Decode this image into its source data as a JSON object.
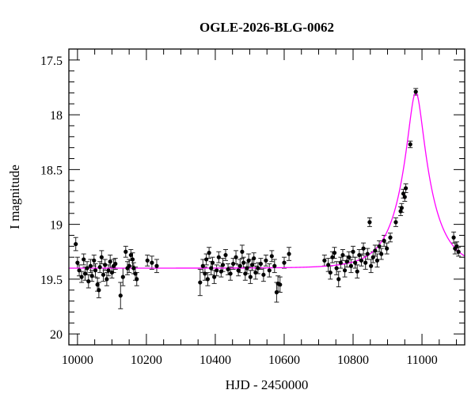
{
  "chart_data": {
    "type": "scatter",
    "title": "OGLE-2026-BLG-0062",
    "xlabel": "HJD - 2450000",
    "ylabel": "I magnitude",
    "xlim": [
      9975,
      11124
    ],
    "ylim": [
      17.4,
      20.1
    ],
    "y_inverted": true,
    "grid": false,
    "x_ticks": [
      10000,
      10200,
      10400,
      10600,
      10800,
      11000
    ],
    "x_tick_labels": [
      "10000",
      "10200",
      "10400",
      "10600",
      "10800",
      "11000"
    ],
    "y_ticks": [
      17.5,
      18,
      18.5,
      19,
      19.5,
      20
    ],
    "y_tick_labels": [
      "17.5",
      "18",
      "18.5",
      "19",
      "19.5",
      "20"
    ],
    "colors": {
      "points": "#000000",
      "model": "#ff00ff"
    },
    "points_columns": [
      "hjd",
      "mag",
      "err"
    ],
    "points": [
      [
        9995,
        19.18,
        0.06
      ],
      [
        10000,
        19.35,
        0.05
      ],
      [
        10005,
        19.42,
        0.05
      ],
      [
        10012,
        19.48,
        0.05
      ],
      [
        10018,
        19.32,
        0.05
      ],
      [
        10022,
        19.45,
        0.06
      ],
      [
        10028,
        19.4,
        0.06
      ],
      [
        10032,
        19.52,
        0.06
      ],
      [
        10038,
        19.38,
        0.06
      ],
      [
        10042,
        19.47,
        0.05
      ],
      [
        10048,
        19.33,
        0.05
      ],
      [
        10052,
        19.42,
        0.06
      ],
      [
        10058,
        19.55,
        0.06
      ],
      [
        10062,
        19.6,
        0.07
      ],
      [
        10065,
        19.39,
        0.05
      ],
      [
        10070,
        19.3,
        0.06
      ],
      [
        10075,
        19.46,
        0.06
      ],
      [
        10080,
        19.37,
        0.05
      ],
      [
        10085,
        19.5,
        0.06
      ],
      [
        10090,
        19.42,
        0.05
      ],
      [
        10095,
        19.34,
        0.06
      ],
      [
        10100,
        19.44,
        0.05
      ],
      [
        10105,
        19.38,
        0.06
      ],
      [
        10110,
        19.36,
        0.05
      ],
      [
        10125,
        19.65,
        0.12
      ],
      [
        10132,
        19.48,
        0.08
      ],
      [
        10140,
        19.25,
        0.05
      ],
      [
        10145,
        19.4,
        0.06
      ],
      [
        10150,
        19.38,
        0.06
      ],
      [
        10155,
        19.28,
        0.05
      ],
      [
        10160,
        19.32,
        0.06
      ],
      [
        10163,
        19.4,
        0.05
      ],
      [
        10168,
        19.45,
        0.06
      ],
      [
        10172,
        19.5,
        0.06
      ],
      [
        10203,
        19.33,
        0.05
      ],
      [
        10216,
        19.35,
        0.06
      ],
      [
        10230,
        19.38,
        0.06
      ],
      [
        10356,
        19.53,
        0.12
      ],
      [
        10364,
        19.38,
        0.06
      ],
      [
        10370,
        19.45,
        0.06
      ],
      [
        10374,
        19.32,
        0.05
      ],
      [
        10378,
        19.5,
        0.06
      ],
      [
        10382,
        19.26,
        0.05
      ],
      [
        10388,
        19.4,
        0.06
      ],
      [
        10392,
        19.35,
        0.05
      ],
      [
        10397,
        19.48,
        0.06
      ],
      [
        10404,
        19.42,
        0.05
      ],
      [
        10410,
        19.3,
        0.05
      ],
      [
        10417,
        19.43,
        0.05
      ],
      [
        10422,
        19.37,
        0.06
      ],
      [
        10430,
        19.28,
        0.05
      ],
      [
        10437,
        19.41,
        0.05
      ],
      [
        10444,
        19.45,
        0.06
      ],
      [
        10452,
        19.36,
        0.05
      ],
      [
        10460,
        19.3,
        0.06
      ],
      [
        10467,
        19.42,
        0.05
      ],
      [
        10472,
        19.38,
        0.06
      ],
      [
        10478,
        19.25,
        0.06
      ],
      [
        10482,
        19.35,
        0.05
      ],
      [
        10487,
        19.45,
        0.06
      ],
      [
        10492,
        19.4,
        0.05
      ],
      [
        10497,
        19.33,
        0.06
      ],
      [
        10502,
        19.48,
        0.06
      ],
      [
        10507,
        19.37,
        0.05
      ],
      [
        10512,
        19.31,
        0.05
      ],
      [
        10517,
        19.44,
        0.06
      ],
      [
        10524,
        19.4,
        0.05
      ],
      [
        10532,
        19.36,
        0.05
      ],
      [
        10540,
        19.46,
        0.06
      ],
      [
        10547,
        19.33,
        0.05
      ],
      [
        10557,
        19.42,
        0.06
      ],
      [
        10564,
        19.29,
        0.05
      ],
      [
        10572,
        19.38,
        0.06
      ],
      [
        10578,
        19.62,
        0.09
      ],
      [
        10582,
        19.54,
        0.07
      ],
      [
        10588,
        19.55,
        0.07
      ],
      [
        10600,
        19.35,
        0.05
      ],
      [
        10614,
        19.27,
        0.06
      ],
      [
        10717,
        19.33,
        0.05
      ],
      [
        10728,
        19.37,
        0.06
      ],
      [
        10734,
        19.44,
        0.06
      ],
      [
        10740,
        19.3,
        0.05
      ],
      [
        10746,
        19.26,
        0.05
      ],
      [
        10752,
        19.4,
        0.06
      ],
      [
        10758,
        19.5,
        0.07
      ],
      [
        10764,
        19.35,
        0.05
      ],
      [
        10770,
        19.28,
        0.05
      ],
      [
        10776,
        19.42,
        0.06
      ],
      [
        10782,
        19.34,
        0.05
      ],
      [
        10788,
        19.3,
        0.05
      ],
      [
        10794,
        19.38,
        0.06
      ],
      [
        10800,
        19.25,
        0.05
      ],
      [
        10806,
        19.35,
        0.05
      ],
      [
        10812,
        19.43,
        0.06
      ],
      [
        10818,
        19.28,
        0.05
      ],
      [
        10824,
        19.33,
        0.05
      ],
      [
        10830,
        19.22,
        0.05
      ],
      [
        10836,
        19.35,
        0.06
      ],
      [
        10842,
        19.27,
        0.05
      ],
      [
        10848,
        18.98,
        0.04
      ],
      [
        10852,
        19.38,
        0.06
      ],
      [
        10858,
        19.3,
        0.05
      ],
      [
        10864,
        19.24,
        0.05
      ],
      [
        10870,
        19.33,
        0.06
      ],
      [
        10876,
        19.2,
        0.05
      ],
      [
        10882,
        19.27,
        0.05
      ],
      [
        10890,
        19.15,
        0.05
      ],
      [
        10898,
        19.22,
        0.05
      ],
      [
        10908,
        19.12,
        0.04
      ],
      [
        10924,
        18.98,
        0.04
      ],
      [
        10938,
        18.88,
        0.04
      ],
      [
        10941,
        18.85,
        0.04
      ],
      [
        10946,
        18.72,
        0.04
      ],
      [
        10950,
        18.75,
        0.04
      ],
      [
        10953,
        18.67,
        0.04
      ],
      [
        10966,
        18.27,
        0.03
      ],
      [
        10982,
        17.79,
        0.03
      ],
      [
        11092,
        19.12,
        0.05
      ],
      [
        11096,
        19.22,
        0.05
      ],
      [
        11101,
        19.2,
        0.04
      ],
      [
        11106,
        19.25,
        0.04
      ]
    ],
    "model": {
      "type": "PSPL",
      "t0": 10982,
      "u0": 0.233,
      "tE": 88,
      "baseline_mag": 19.4
    }
  }
}
